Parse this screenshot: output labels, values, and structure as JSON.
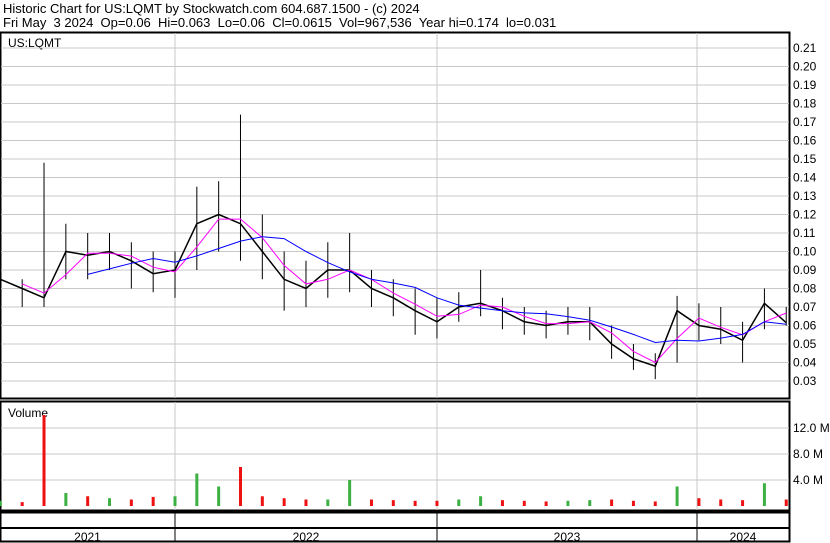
{
  "header": {
    "title": "Historic Chart for US:LQMT by Stockwatch.com 604.687.1500 - (c) 2024",
    "quote": "Fri May  3 2024  Op=0.06  Hi=0.063  Lo=0.06  Cl=0.0615  Vol=967,536  Year hi=0.174  lo=0.031"
  },
  "chart_data": {
    "type": "line",
    "symbol": "US:LQMT",
    "volume_label": "Volume",
    "price_ticks": [
      "0.21",
      "0.20",
      "0.19",
      "0.18",
      "0.17",
      "0.16",
      "0.15",
      "0.14",
      "0.13",
      "0.12",
      "0.11",
      "0.10",
      "0.09",
      "0.08",
      "0.07",
      "0.06",
      "0.05",
      "0.04",
      "0.03"
    ],
    "volume_ticks": [
      {
        "label": "12.0 M",
        "value": 12
      },
      {
        "label": "8.0 M",
        "value": 8
      },
      {
        "label": "4.0 M",
        "value": 4
      }
    ],
    "year_labels": [
      "2021",
      "2022",
      "2023",
      "2024"
    ],
    "ylim": [
      0.02,
      0.215
    ],
    "dates": [
      "2021-05",
      "2021-06",
      "2021-07",
      "2021-08",
      "2021-09",
      "2021-10",
      "2021-11",
      "2021-12",
      "2022-01",
      "2022-02",
      "2022-03",
      "2022-04",
      "2022-05",
      "2022-06",
      "2022-07",
      "2022-08",
      "2022-09",
      "2022-10",
      "2022-11",
      "2022-12",
      "2023-01",
      "2023-02",
      "2023-03",
      "2023-04",
      "2023-05",
      "2023-06",
      "2023-07",
      "2023-08",
      "2023-09",
      "2023-10",
      "2023-11",
      "2023-12",
      "2024-01",
      "2024-02",
      "2024-03",
      "2024-04",
      "2024-05"
    ],
    "close": [
      0.085,
      0.08,
      0.075,
      0.1,
      0.098,
      0.1,
      0.095,
      0.088,
      0.09,
      0.115,
      0.12,
      0.115,
      0.1,
      0.085,
      0.08,
      0.09,
      0.09,
      0.08,
      0.075,
      0.068,
      0.062,
      0.07,
      0.072,
      0.068,
      0.062,
      0.06,
      0.062,
      0.062,
      0.05,
      0.042,
      0.038,
      0.068,
      0.06,
      0.058,
      0.052,
      0.072,
      0.0615
    ],
    "high": [
      0.09,
      0.085,
      0.148,
      0.115,
      0.11,
      0.11,
      0.105,
      0.1,
      0.1,
      0.135,
      0.138,
      0.174,
      0.12,
      0.1,
      0.095,
      0.105,
      0.11,
      0.09,
      0.085,
      0.08,
      0.075,
      0.078,
      0.09,
      0.075,
      0.07,
      0.068,
      0.07,
      0.07,
      0.06,
      0.05,
      0.045,
      0.076,
      0.072,
      0.07,
      0.062,
      0.08,
      0.07
    ],
    "low": [
      0.078,
      0.07,
      0.07,
      0.085,
      0.085,
      0.09,
      0.08,
      0.078,
      0.075,
      0.09,
      0.1,
      0.095,
      0.085,
      0.068,
      0.07,
      0.075,
      0.078,
      0.07,
      0.065,
      0.055,
      0.053,
      0.062,
      0.065,
      0.058,
      0.055,
      0.053,
      0.055,
      0.052,
      0.042,
      0.036,
      0.031,
      0.04,
      0.052,
      0.05,
      0.04,
      0.058,
      0.06
    ],
    "volume_millions": [
      0.8,
      0.6,
      14,
      2,
      1.5,
      1.2,
      1,
      1.4,
      1.5,
      5,
      3,
      6,
      1.5,
      1.2,
      1,
      1,
      4,
      1,
      0.9,
      0.8,
      0.8,
      1,
      1.5,
      0.9,
      0.8,
      0.7,
      0.8,
      0.9,
      1,
      0.8,
      0.7,
      3,
      1.2,
      1,
      0.9,
      3.5,
      1
    ],
    "colors": {
      "price": "#000000",
      "ma_short": "#ff00ff",
      "ma_long": "#0000ff",
      "volume_up": "#3cb043",
      "volume_down": "#ee1111",
      "grid": "#c8c8c8"
    }
  }
}
